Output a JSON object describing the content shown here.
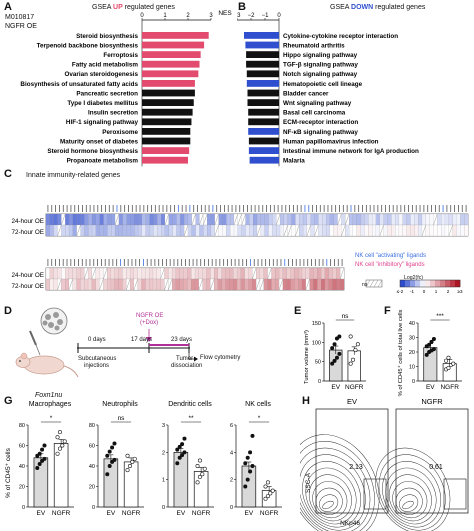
{
  "panelA": {
    "letter": "A",
    "cell_line": "M010817",
    "condition": "NGFR OE",
    "title_prefix": "GSEA ",
    "title_emph": "UP",
    "title_suffix": " regulated genes",
    "axis_label": "NES",
    "ticks": [
      "0",
      "1",
      "2",
      "3"
    ]
  },
  "panelB": {
    "letter": "B",
    "title_prefix": "GSEA ",
    "title_emph": "DOWN",
    "title_suffix": " regulated genes",
    "axis_label": "NES",
    "ticks": [
      "−3",
      "−2",
      "−1",
      "0"
    ]
  },
  "panelC": {
    "letter": "C",
    "title": "Innate immunity-related genes",
    "rows_top": [
      "24-hour OE",
      "72-hour OE"
    ],
    "rows_bottom": [
      "24-hour OE",
      "72-hour OE"
    ],
    "legend_nk_activating": "NK cell \"activating\" ligands",
    "legend_nk_inhibitory": "NK cell \"inhibitory\" ligands",
    "legend_ns": "ns",
    "legend_scale_title": "Log2(fc)",
    "legend_scale_ticks": [
      "≤-2",
      "-1",
      "0",
      "1",
      "2",
      "≥3"
    ]
  },
  "panelD": {
    "letter": "D",
    "mouse_label": "Foxn1nu",
    "day0": "0 days",
    "day17": "17 days",
    "day23": "23 days",
    "treatment": "NGFR OE",
    "treatment_sub": "(+Dox)",
    "step1": "Subcutaneous",
    "step1b": "injections",
    "step2": "Tumor",
    "step2b": "dissociation",
    "step3": "Flow cytometry"
  },
  "panelE": {
    "letter": "E",
    "ylabel": "Tumor volume (mm³)",
    "yticks": [
      "0",
      "50",
      "100",
      "150"
    ],
    "groups": [
      "EV",
      "NGFR"
    ],
    "sig": "ns"
  },
  "panelF": {
    "letter": "F",
    "ylabel": "% of CD45⁺ cells of total live cells",
    "yticks": [
      "0",
      "10",
      "20",
      "30",
      "40"
    ],
    "groups": [
      "EV",
      "NGFR"
    ],
    "sig": "***"
  },
  "panelG": {
    "letter": "G",
    "ylabel": "% of CD45⁺ cells",
    "groups": [
      "EV",
      "NGFR"
    ],
    "subplots": [
      {
        "title": "Macrophages",
        "sig": "*",
        "yticks": [
          "0",
          "20",
          "40",
          "60",
          "80"
        ]
      },
      {
        "title": "Neutrophils",
        "sig": "ns",
        "yticks": [
          "0",
          "20",
          "40",
          "60",
          "80"
        ]
      },
      {
        "title": "Dendritic cells",
        "sig": "**",
        "yticks": [
          "0",
          "1",
          "2",
          "3"
        ]
      },
      {
        "title": "NK cells",
        "sig": "*",
        "yticks": [
          "0",
          "2",
          "4",
          "6"
        ]
      }
    ]
  },
  "panelH": {
    "letter": "H",
    "ev_title": "EV",
    "ngfr_title": "NGFR",
    "ev_value": "2.13",
    "ngfr_value": "0.61",
    "ylabel": "SSC-A",
    "xlabel": "NKp46"
  },
  "colors": {
    "up": "#e24a6e",
    "down": "#2f4fcf",
    "black": "#111111",
    "nk_activating": "#3a6fe0",
    "nk_inhibitory": "#e0408a",
    "bar_gray": "#e3e3e3"
  },
  "chart_data": [
    {
      "type": "bar",
      "title": "GSEA UP regulated genes",
      "xlabel": "NES",
      "xlim": [
        0,
        3
      ],
      "categories": [
        "Steroid biosynthesis",
        "Terpenoid backbone biosynthesis",
        "Ferroptosis",
        "Fatty acid metabolism",
        "Ovarian steroidogenesis",
        "Biosynthesis of unsaturated fatty acids",
        "Pancreatic secretion",
        "Type I diabetes mellitus",
        "Insulin secretion",
        "HIF-1 signaling pathway",
        "Peroxisome",
        "Maturity onset of diabetes",
        "Steroid hormone biosynthesis",
        "Propanoate metabolism"
      ],
      "values": [
        2.9,
        2.7,
        2.55,
        2.5,
        2.45,
        2.3,
        2.3,
        2.25,
        2.2,
        2.15,
        2.1,
        2.1,
        2.05,
        2.0
      ],
      "highlighted": [
        true,
        true,
        true,
        true,
        true,
        true,
        false,
        false,
        false,
        false,
        false,
        false,
        true,
        true
      ]
    },
    {
      "type": "bar",
      "title": "GSEA DOWN regulated genes",
      "xlabel": "NES",
      "xlim": [
        -3,
        0
      ],
      "categories": [
        "Cytokine-cytokine receptor interaction",
        "Rheumatoid arthritis",
        "Hippo signaling pathway",
        "TGF-β signaling pathway",
        "Notch signaling pathway",
        "Hematopoietic cell lineage",
        "Bladder cancer",
        "Wnt signaling pathway",
        "Basal cell carcinoma",
        "ECM-receptor interaction",
        "NF-κB signaling pathway",
        "Human papillomavirus infection",
        "Intestinal immune network for IgA production",
        "Malaria"
      ],
      "values": [
        -2.5,
        -2.4,
        -2.35,
        -2.35,
        -2.3,
        -2.3,
        -2.25,
        -2.25,
        -2.2,
        -2.2,
        -2.2,
        -2.15,
        -2.15,
        -2.1
      ],
      "highlighted": [
        true,
        true,
        false,
        false,
        false,
        true,
        false,
        false,
        false,
        false,
        true,
        false,
        true,
        true
      ]
    },
    {
      "type": "bar",
      "title": "",
      "ylabel": "Tumor volume (mm³)",
      "ylim": [
        0,
        150
      ],
      "categories": [
        "EV",
        "NGFR"
      ],
      "values": [
        80,
        78
      ],
      "points": [
        [
          45,
          52,
          60,
          70,
          85,
          95,
          110,
          115
        ],
        [
          45,
          55,
          80,
          95,
          115
        ]
      ]
    },
    {
      "type": "bar",
      "title": "",
      "ylabel": "% of CD45⁺ cells of total live cells",
      "ylim": [
        0,
        40
      ],
      "categories": [
        "EV",
        "NGFR"
      ],
      "values": [
        23,
        12
      ],
      "points": [
        [
          18,
          20,
          21,
          22,
          24,
          25,
          27,
          29
        ],
        [
          8,
          9,
          11,
          12,
          14,
          16
        ]
      ]
    },
    {
      "type": "bar",
      "title": "Macrophages",
      "ylabel": "% of CD45⁺ cells",
      "ylim": [
        0,
        80
      ],
      "categories": [
        "EV",
        "NGFR"
      ],
      "values": [
        48,
        62
      ],
      "points": [
        [
          38,
          42,
          45,
          47,
          50,
          52,
          56,
          60
        ],
        [
          52,
          57,
          60,
          64,
          68,
          73
        ]
      ]
    },
    {
      "type": "bar",
      "title": "Neutrophils",
      "ylim": [
        0,
        80
      ],
      "categories": [
        "EV",
        "NGFR"
      ],
      "values": [
        47,
        44
      ],
      "points": [
        [
          32,
          40,
          44,
          46,
          50,
          54,
          58,
          62
        ],
        [
          36,
          40,
          44,
          47,
          50
        ]
      ]
    },
    {
      "type": "bar",
      "title": "Dendritic cells",
      "ylim": [
        0,
        3
      ],
      "categories": [
        "EV",
        "NGFR"
      ],
      "values": [
        2.0,
        1.3
      ],
      "points": [
        [
          1.6,
          1.8,
          1.9,
          2.0,
          2.1,
          2.2,
          2.3,
          2.5
        ],
        [
          0.9,
          1.1,
          1.2,
          1.4,
          1.5,
          1.7
        ]
      ]
    },
    {
      "type": "bar",
      "title": "NK cells",
      "ylim": [
        0,
        6
      ],
      "categories": [
        "EV",
        "NGFR"
      ],
      "values": [
        3.0,
        1.2
      ],
      "points": [
        [
          1.5,
          2.0,
          2.6,
          3.0,
          3.2,
          3.6,
          4.0,
          5.2
        ],
        [
          0.6,
          0.8,
          1.0,
          1.2,
          1.5,
          1.8
        ]
      ]
    }
  ]
}
